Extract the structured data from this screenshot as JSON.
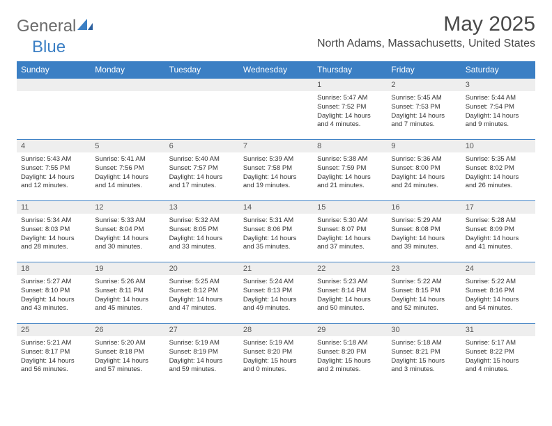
{
  "brand": {
    "part1": "General",
    "part2": "Blue"
  },
  "title": "May 2025",
  "location": "North Adams, Massachusetts, United States",
  "colors": {
    "header_bg": "#3b7fc4",
    "header_text": "#ffffff",
    "daynum_bg": "#eeeeee",
    "border": "#3b7fc4",
    "text": "#333333",
    "logo_gray": "#6b6b6b",
    "logo_blue": "#3b7fc4"
  },
  "day_headers": [
    "Sunday",
    "Monday",
    "Tuesday",
    "Wednesday",
    "Thursday",
    "Friday",
    "Saturday"
  ],
  "weeks": [
    [
      null,
      null,
      null,
      null,
      {
        "n": "1",
        "sr": "5:47 AM",
        "ss": "7:52 PM",
        "dl": "14 hours and 4 minutes."
      },
      {
        "n": "2",
        "sr": "5:45 AM",
        "ss": "7:53 PM",
        "dl": "14 hours and 7 minutes."
      },
      {
        "n": "3",
        "sr": "5:44 AM",
        "ss": "7:54 PM",
        "dl": "14 hours and 9 minutes."
      }
    ],
    [
      {
        "n": "4",
        "sr": "5:43 AM",
        "ss": "7:55 PM",
        "dl": "14 hours and 12 minutes."
      },
      {
        "n": "5",
        "sr": "5:41 AM",
        "ss": "7:56 PM",
        "dl": "14 hours and 14 minutes."
      },
      {
        "n": "6",
        "sr": "5:40 AM",
        "ss": "7:57 PM",
        "dl": "14 hours and 17 minutes."
      },
      {
        "n": "7",
        "sr": "5:39 AM",
        "ss": "7:58 PM",
        "dl": "14 hours and 19 minutes."
      },
      {
        "n": "8",
        "sr": "5:38 AM",
        "ss": "7:59 PM",
        "dl": "14 hours and 21 minutes."
      },
      {
        "n": "9",
        "sr": "5:36 AM",
        "ss": "8:00 PM",
        "dl": "14 hours and 24 minutes."
      },
      {
        "n": "10",
        "sr": "5:35 AM",
        "ss": "8:02 PM",
        "dl": "14 hours and 26 minutes."
      }
    ],
    [
      {
        "n": "11",
        "sr": "5:34 AM",
        "ss": "8:03 PM",
        "dl": "14 hours and 28 minutes."
      },
      {
        "n": "12",
        "sr": "5:33 AM",
        "ss": "8:04 PM",
        "dl": "14 hours and 30 minutes."
      },
      {
        "n": "13",
        "sr": "5:32 AM",
        "ss": "8:05 PM",
        "dl": "14 hours and 33 minutes."
      },
      {
        "n": "14",
        "sr": "5:31 AM",
        "ss": "8:06 PM",
        "dl": "14 hours and 35 minutes."
      },
      {
        "n": "15",
        "sr": "5:30 AM",
        "ss": "8:07 PM",
        "dl": "14 hours and 37 minutes."
      },
      {
        "n": "16",
        "sr": "5:29 AM",
        "ss": "8:08 PM",
        "dl": "14 hours and 39 minutes."
      },
      {
        "n": "17",
        "sr": "5:28 AM",
        "ss": "8:09 PM",
        "dl": "14 hours and 41 minutes."
      }
    ],
    [
      {
        "n": "18",
        "sr": "5:27 AM",
        "ss": "8:10 PM",
        "dl": "14 hours and 43 minutes."
      },
      {
        "n": "19",
        "sr": "5:26 AM",
        "ss": "8:11 PM",
        "dl": "14 hours and 45 minutes."
      },
      {
        "n": "20",
        "sr": "5:25 AM",
        "ss": "8:12 PM",
        "dl": "14 hours and 47 minutes."
      },
      {
        "n": "21",
        "sr": "5:24 AM",
        "ss": "8:13 PM",
        "dl": "14 hours and 49 minutes."
      },
      {
        "n": "22",
        "sr": "5:23 AM",
        "ss": "8:14 PM",
        "dl": "14 hours and 50 minutes."
      },
      {
        "n": "23",
        "sr": "5:22 AM",
        "ss": "8:15 PM",
        "dl": "14 hours and 52 minutes."
      },
      {
        "n": "24",
        "sr": "5:22 AM",
        "ss": "8:16 PM",
        "dl": "14 hours and 54 minutes."
      }
    ],
    [
      {
        "n": "25",
        "sr": "5:21 AM",
        "ss": "8:17 PM",
        "dl": "14 hours and 56 minutes."
      },
      {
        "n": "26",
        "sr": "5:20 AM",
        "ss": "8:18 PM",
        "dl": "14 hours and 57 minutes."
      },
      {
        "n": "27",
        "sr": "5:19 AM",
        "ss": "8:19 PM",
        "dl": "14 hours and 59 minutes."
      },
      {
        "n": "28",
        "sr": "5:19 AM",
        "ss": "8:20 PM",
        "dl": "15 hours and 0 minutes."
      },
      {
        "n": "29",
        "sr": "5:18 AM",
        "ss": "8:20 PM",
        "dl": "15 hours and 2 minutes."
      },
      {
        "n": "30",
        "sr": "5:18 AM",
        "ss": "8:21 PM",
        "dl": "15 hours and 3 minutes."
      },
      {
        "n": "31",
        "sr": "5:17 AM",
        "ss": "8:22 PM",
        "dl": "15 hours and 4 minutes."
      }
    ]
  ],
  "labels": {
    "sunrise": "Sunrise:",
    "sunset": "Sunset:",
    "daylight": "Daylight:"
  }
}
